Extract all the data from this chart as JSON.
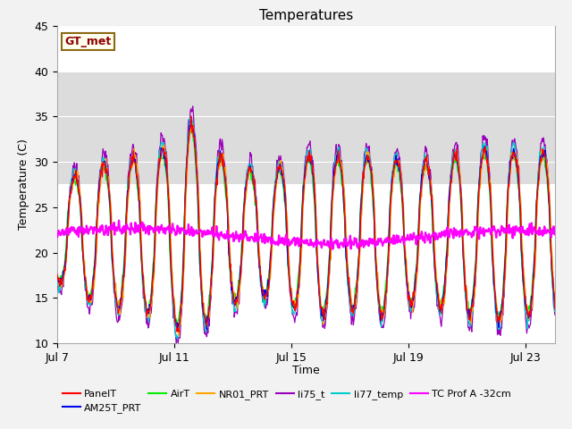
{
  "title": "Temperatures",
  "xlabel": "Time",
  "ylabel": "Temperature (C)",
  "ylim": [
    10,
    45
  ],
  "yticks": [
    10,
    15,
    20,
    25,
    30,
    35,
    40,
    45
  ],
  "xtick_labels": [
    "Jul 7",
    "Jul 11",
    "Jul 15",
    "Jul 19",
    "Jul 23"
  ],
  "xtick_positions": [
    0,
    4,
    8,
    12,
    16
  ],
  "annotation_text": "GT_met",
  "annotation_color": "#8B0000",
  "annotation_bg": "#FFFFF0",
  "annotation_border": "#8B6914",
  "series_colors": {
    "PanelT": "#FF0000",
    "AM25T_PRT": "#0000EE",
    "AirT": "#00EE00",
    "NR01_PRT": "#FFA500",
    "li75_t": "#9900BB",
    "li77_temp": "#00CCCC",
    "TC Prof A -32cm": "#FF00FF"
  },
  "fig_bg": "#F2F2F2",
  "plot_bg": "#FFFFFF",
  "band_color": "#DCDCDC",
  "band_ymin": 27.5,
  "band_ymax": 40.0,
  "grid_color": "#CCCCCC",
  "n_days": 17,
  "seed": 42,
  "legend_ncol_row1": 6,
  "legend_ncol_row2": 1
}
